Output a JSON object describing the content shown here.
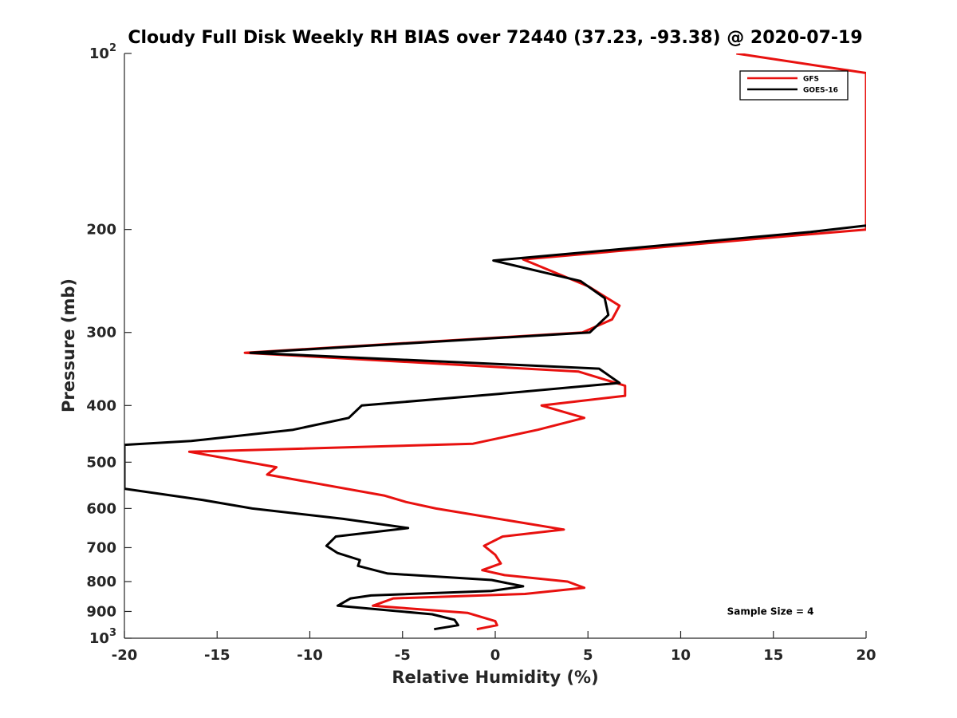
{
  "chart_data": {
    "type": "line",
    "title": "Cloudy Full Disk Weekly RH BIAS over 72440 (37.23, -93.38) @ 2020-07-19",
    "xlabel": "Relative Humidity (%)",
    "ylabel": "Pressure (mb)",
    "xlim": [
      -20,
      20
    ],
    "ylim": [
      1000,
      100
    ],
    "y_scale": "log",
    "y_direction": "reversed",
    "grid": false,
    "legend_position": "top-right",
    "x_ticks": [
      -20,
      -15,
      -10,
      -5,
      0,
      5,
      10,
      15,
      20
    ],
    "x_tick_labels": [
      "-20",
      "-15",
      "-10",
      "-5",
      "0",
      "5",
      "10",
      "15",
      "20"
    ],
    "y_ticks": [
      100,
      200,
      300,
      400,
      500,
      600,
      700,
      800,
      900,
      1000
    ],
    "y_tick_labels": [
      {
        "base": "10",
        "exp": "2"
      },
      {
        "base": "200",
        "exp": ""
      },
      {
        "base": "300",
        "exp": ""
      },
      {
        "base": "400",
        "exp": ""
      },
      {
        "base": "500",
        "exp": ""
      },
      {
        "base": "600",
        "exp": ""
      },
      {
        "base": "700",
        "exp": ""
      },
      {
        "base": "800",
        "exp": ""
      },
      {
        "base": "900",
        "exp": ""
      },
      {
        "base": "10",
        "exp": "3"
      }
    ],
    "series": [
      {
        "name": "GFS",
        "color": "#e8110f",
        "points": [
          [
            13.0,
            100
          ],
          [
            20.0,
            108
          ],
          [
            20.0,
            200
          ],
          [
            16.0,
            205
          ],
          [
            1.5,
            225
          ],
          [
            5.0,
            250
          ],
          [
            6.7,
            270
          ],
          [
            6.3,
            285
          ],
          [
            4.7,
            300
          ],
          [
            -13.5,
            325
          ],
          [
            4.5,
            350
          ],
          [
            7.0,
            370
          ],
          [
            7.0,
            385
          ],
          [
            2.5,
            400
          ],
          [
            4.8,
            420
          ],
          [
            2.3,
            440
          ],
          [
            -1.2,
            465
          ],
          [
            -16.5,
            480
          ],
          [
            -11.8,
            510
          ],
          [
            -12.3,
            525
          ],
          [
            -6.0,
            570
          ],
          [
            -4.8,
            585
          ],
          [
            -3.2,
            600
          ],
          [
            3.7,
            652
          ],
          [
            0.4,
            670
          ],
          [
            -0.6,
            695
          ],
          [
            0.0,
            720
          ],
          [
            0.3,
            745
          ],
          [
            -0.7,
            765
          ],
          [
            0.5,
            780
          ],
          [
            3.9,
            800
          ],
          [
            4.8,
            820
          ],
          [
            1.6,
            840
          ],
          [
            -5.5,
            855
          ],
          [
            -6.6,
            880
          ],
          [
            -1.5,
            905
          ],
          [
            0.0,
            935
          ],
          [
            0.1,
            950
          ],
          [
            -1.0,
            965
          ]
        ]
      },
      {
        "name": "GOES-16",
        "color": "#000000",
        "points": [
          [
            20.0,
            197
          ],
          [
            17.0,
            202
          ],
          [
            -0.1,
            226
          ],
          [
            4.6,
            245
          ],
          [
            5.9,
            262
          ],
          [
            6.1,
            280
          ],
          [
            5.1,
            300
          ],
          [
            -13.2,
            325
          ],
          [
            5.6,
            346
          ],
          [
            6.7,
            366
          ],
          [
            0.2,
            382
          ],
          [
            -7.2,
            400
          ],
          [
            -7.9,
            420
          ],
          [
            -10.9,
            440
          ],
          [
            -16.4,
            460
          ],
          [
            -20.0,
            467
          ],
          [
            -20.0,
            555
          ],
          [
            -15.8,
            580
          ],
          [
            -13.1,
            600
          ],
          [
            -8.2,
            625
          ],
          [
            -4.7,
            648
          ],
          [
            -8.6,
            670
          ],
          [
            -9.1,
            695
          ],
          [
            -8.5,
            715
          ],
          [
            -7.3,
            735
          ],
          [
            -7.4,
            752
          ],
          [
            -5.8,
            775
          ],
          [
            -0.2,
            795
          ],
          [
            1.5,
            815
          ],
          [
            -0.2,
            830
          ],
          [
            -6.7,
            845
          ],
          [
            -7.8,
            855
          ],
          [
            -8.5,
            880
          ],
          [
            -3.4,
            910
          ],
          [
            -2.2,
            930
          ],
          [
            -2.0,
            950
          ],
          [
            -3.3,
            965
          ]
        ]
      }
    ],
    "annotations": [
      {
        "text": "Sample Size = 4",
        "x": 12.5,
        "y": 900
      }
    ]
  }
}
